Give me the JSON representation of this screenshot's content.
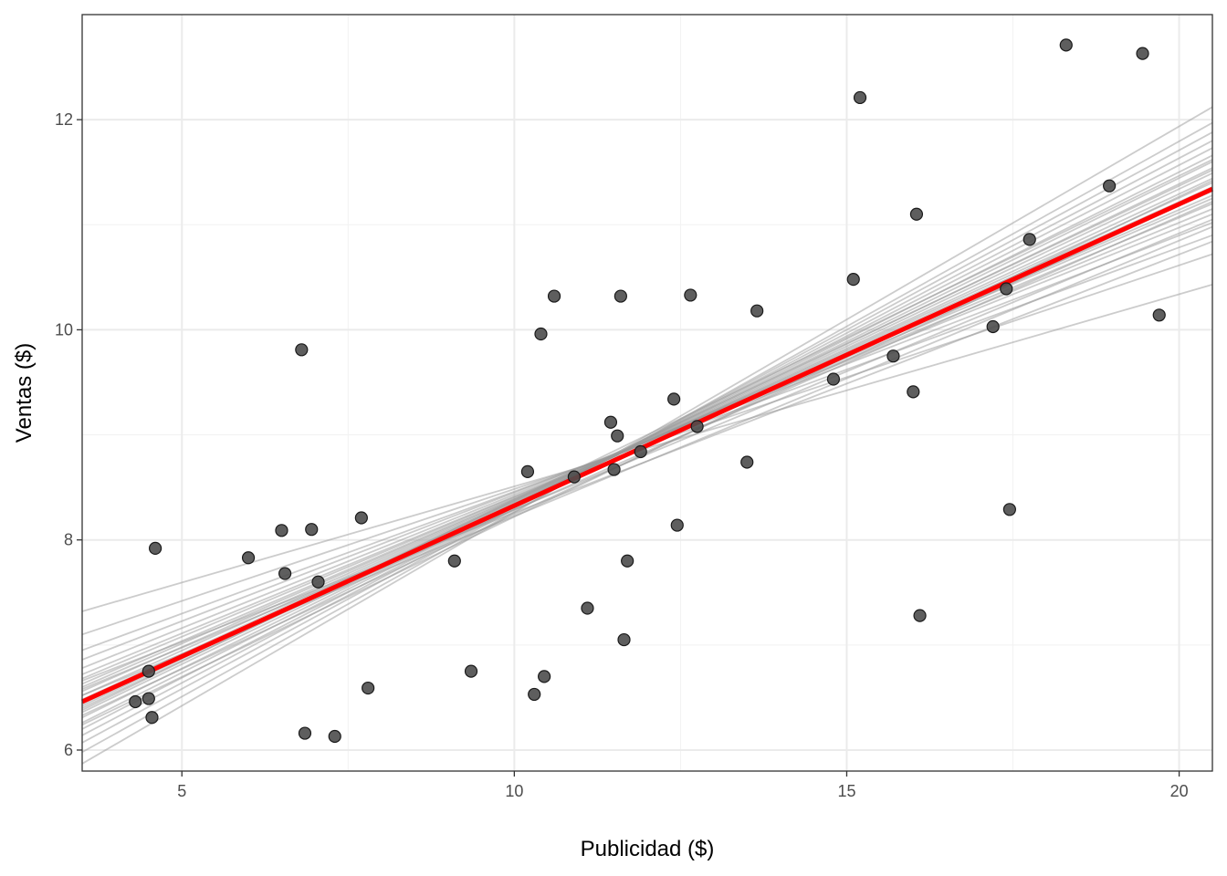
{
  "chart_data": {
    "type": "scatter",
    "title": "",
    "xlabel": "Publicidad ($)",
    "ylabel": "Ventas ($)",
    "xlim": [
      3.5,
      20.5
    ],
    "ylim": [
      5.8,
      13.0
    ],
    "xticks": [
      5,
      10,
      15,
      20
    ],
    "yticks": [
      6,
      8,
      10,
      12
    ],
    "grid": true,
    "legend": "none",
    "colors": {
      "points": "#4d4d4d",
      "fit_line": "#ff0000",
      "bootstrap_lines": "#999999"
    },
    "points": [
      {
        "x": 4.3,
        "y": 6.46
      },
      {
        "x": 4.5,
        "y": 6.75
      },
      {
        "x": 4.5,
        "y": 6.49
      },
      {
        "x": 4.55,
        "y": 6.31
      },
      {
        "x": 4.6,
        "y": 7.92
      },
      {
        "x": 6.0,
        "y": 7.83
      },
      {
        "x": 6.5,
        "y": 8.09
      },
      {
        "x": 6.55,
        "y": 7.68
      },
      {
        "x": 6.8,
        "y": 9.81
      },
      {
        "x": 6.85,
        "y": 6.16
      },
      {
        "x": 6.95,
        "y": 8.1
      },
      {
        "x": 7.05,
        "y": 7.6
      },
      {
        "x": 7.3,
        "y": 6.13
      },
      {
        "x": 7.7,
        "y": 8.21
      },
      {
        "x": 7.8,
        "y": 6.59
      },
      {
        "x": 9.1,
        "y": 7.8
      },
      {
        "x": 9.35,
        "y": 6.75
      },
      {
        "x": 10.2,
        "y": 8.65
      },
      {
        "x": 10.3,
        "y": 6.53
      },
      {
        "x": 10.4,
        "y": 9.96
      },
      {
        "x": 10.45,
        "y": 6.7
      },
      {
        "x": 10.6,
        "y": 10.32
      },
      {
        "x": 10.9,
        "y": 8.6
      },
      {
        "x": 11.1,
        "y": 7.35
      },
      {
        "x": 11.45,
        "y": 9.12
      },
      {
        "x": 11.5,
        "y": 8.67
      },
      {
        "x": 11.55,
        "y": 8.99
      },
      {
        "x": 11.6,
        "y": 10.32
      },
      {
        "x": 11.65,
        "y": 7.05
      },
      {
        "x": 11.7,
        "y": 7.8
      },
      {
        "x": 11.9,
        "y": 8.84
      },
      {
        "x": 12.4,
        "y": 9.34
      },
      {
        "x": 12.45,
        "y": 8.14
      },
      {
        "x": 12.65,
        "y": 10.33
      },
      {
        "x": 12.75,
        "y": 9.08
      },
      {
        "x": 13.5,
        "y": 8.74
      },
      {
        "x": 13.65,
        "y": 10.18
      },
      {
        "x": 14.8,
        "y": 9.53
      },
      {
        "x": 15.1,
        "y": 10.48
      },
      {
        "x": 15.2,
        "y": 12.21
      },
      {
        "x": 15.7,
        "y": 9.75
      },
      {
        "x": 16.0,
        "y": 9.41
      },
      {
        "x": 16.05,
        "y": 11.1
      },
      {
        "x": 16.1,
        "y": 7.28
      },
      {
        "x": 17.2,
        "y": 10.03
      },
      {
        "x": 17.4,
        "y": 10.39
      },
      {
        "x": 17.45,
        "y": 8.29
      },
      {
        "x": 17.75,
        "y": 10.86
      },
      {
        "x": 18.3,
        "y": 12.71
      },
      {
        "x": 18.95,
        "y": 11.37
      },
      {
        "x": 19.45,
        "y": 12.63
      },
      {
        "x": 19.7,
        "y": 10.14
      }
    ],
    "fit_line": {
      "x": [
        3.5,
        20.5
      ],
      "y": [
        6.46,
        11.34
      ]
    },
    "bootstrap_lines": [
      {
        "y0": 7.32,
        "y1": 10.43
      },
      {
        "y0": 7.1,
        "y1": 10.72
      },
      {
        "y0": 6.95,
        "y1": 10.9
      },
      {
        "y0": 6.86,
        "y1": 11.02
      },
      {
        "y0": 6.78,
        "y1": 11.1
      },
      {
        "y0": 6.72,
        "y1": 11.15
      },
      {
        "y0": 6.68,
        "y1": 11.2
      },
      {
        "y0": 6.63,
        "y1": 11.25
      },
      {
        "y0": 6.6,
        "y1": 11.28
      },
      {
        "y0": 6.56,
        "y1": 11.32
      },
      {
        "y0": 6.52,
        "y1": 11.36
      },
      {
        "y0": 6.48,
        "y1": 11.4
      },
      {
        "y0": 6.44,
        "y1": 11.44
      },
      {
        "y0": 6.4,
        "y1": 11.49
      },
      {
        "y0": 6.36,
        "y1": 11.54
      },
      {
        "y0": 6.31,
        "y1": 11.6
      },
      {
        "y0": 6.26,
        "y1": 11.66
      },
      {
        "y0": 6.2,
        "y1": 11.73
      },
      {
        "y0": 6.14,
        "y1": 11.8
      },
      {
        "y0": 6.07,
        "y1": 11.88
      },
      {
        "y0": 5.98,
        "y1": 11.97
      },
      {
        "y0": 5.87,
        "y1": 12.12
      },
      {
        "y0": 6.58,
        "y1": 11.05
      },
      {
        "y0": 6.47,
        "y1": 11.22
      },
      {
        "y0": 6.33,
        "y1": 11.33
      },
      {
        "y0": 6.52,
        "y1": 10.98
      },
      {
        "y0": 6.42,
        "y1": 11.52
      },
      {
        "y0": 6.24,
        "y1": 11.42
      },
      {
        "y0": 6.66,
        "y1": 10.84
      },
      {
        "y0": 6.38,
        "y1": 11.62
      }
    ]
  }
}
